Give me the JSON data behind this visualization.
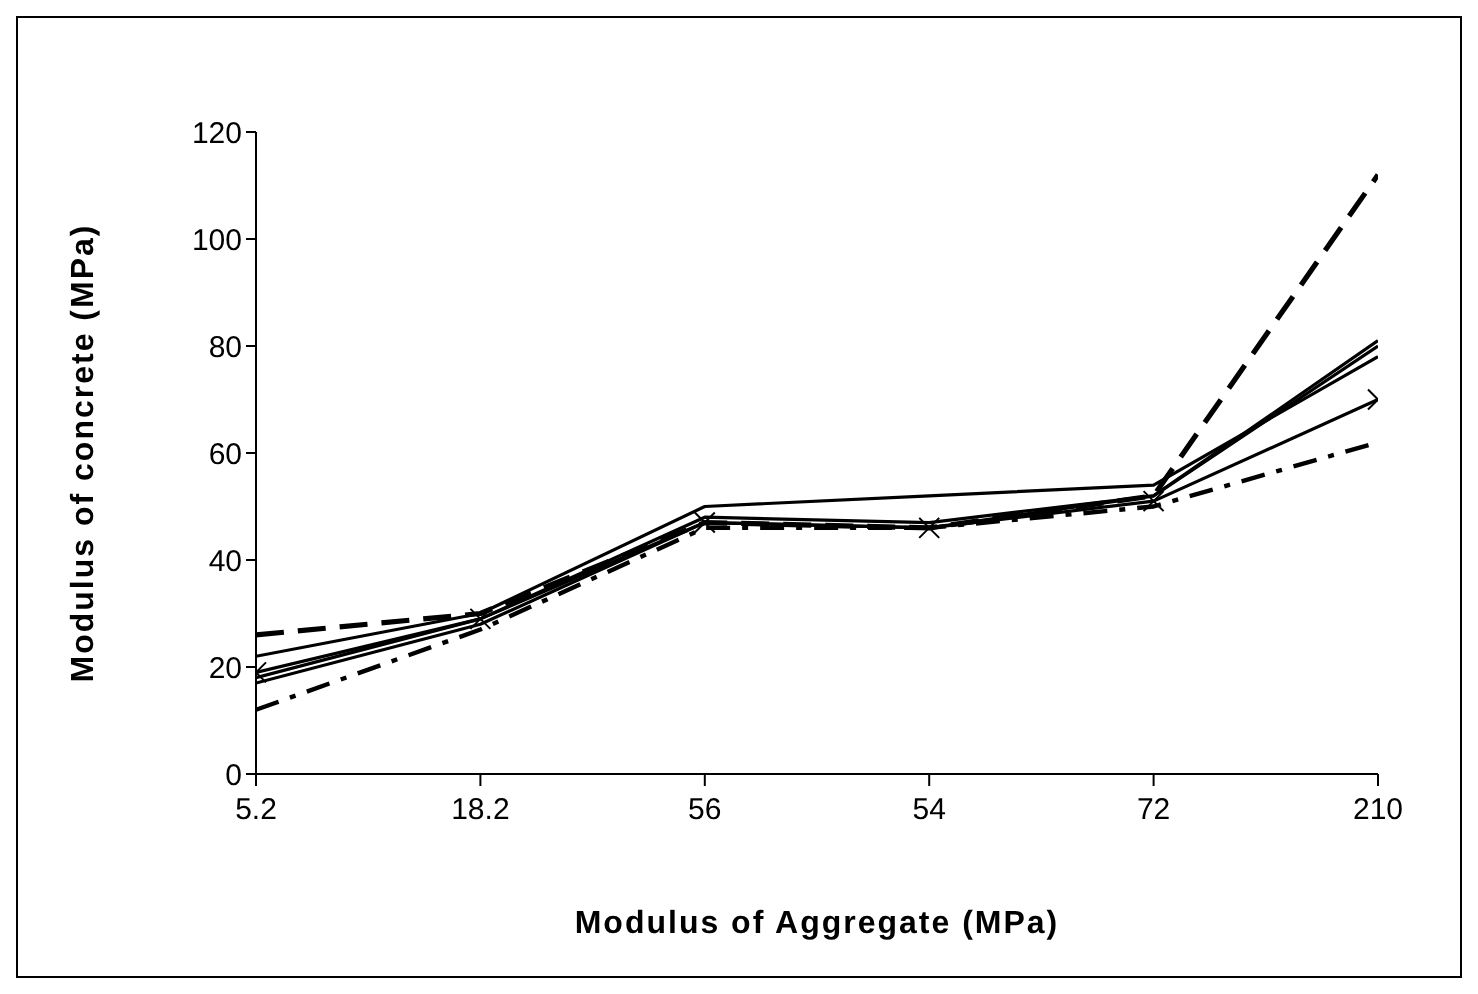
{
  "chart_data": {
    "type": "line",
    "xlabel": "Modulus of Aggregate (MPa)",
    "ylabel": "Modulus of concrete (MPa)",
    "categories": [
      "5.2",
      "18.2",
      "56",
      "54",
      "72",
      "210"
    ],
    "ylim": [
      0,
      120
    ],
    "yticks": [
      0,
      20,
      40,
      60,
      80,
      100,
      120
    ],
    "grid": false,
    "legend": false,
    "series": [
      {
        "color": "#000000",
        "line_style": "dashed",
        "marker": "none",
        "values": [
          26,
          30,
          47,
          46,
          52,
          112
        ]
      },
      {
        "color": "#000000",
        "line_style": "dashdot",
        "marker": "none",
        "values": [
          12,
          27,
          46,
          46,
          50,
          62
        ]
      },
      {
        "color": "#000000",
        "line_style": "solid",
        "marker": "none",
        "values": [
          22,
          30,
          50,
          52,
          54,
          78
        ]
      },
      {
        "color": "#000000",
        "line_style": "solid",
        "marker": "cross",
        "values": [
          19,
          29,
          47,
          46,
          51,
          70
        ]
      },
      {
        "color": "#000000",
        "line_style": "solid",
        "marker": "none",
        "values": [
          18,
          29,
          48,
          47,
          52,
          81
        ]
      },
      {
        "color": "#000000",
        "line_style": "solid",
        "marker": "none",
        "values": [
          17,
          28,
          47,
          46,
          52,
          80
        ]
      }
    ]
  }
}
